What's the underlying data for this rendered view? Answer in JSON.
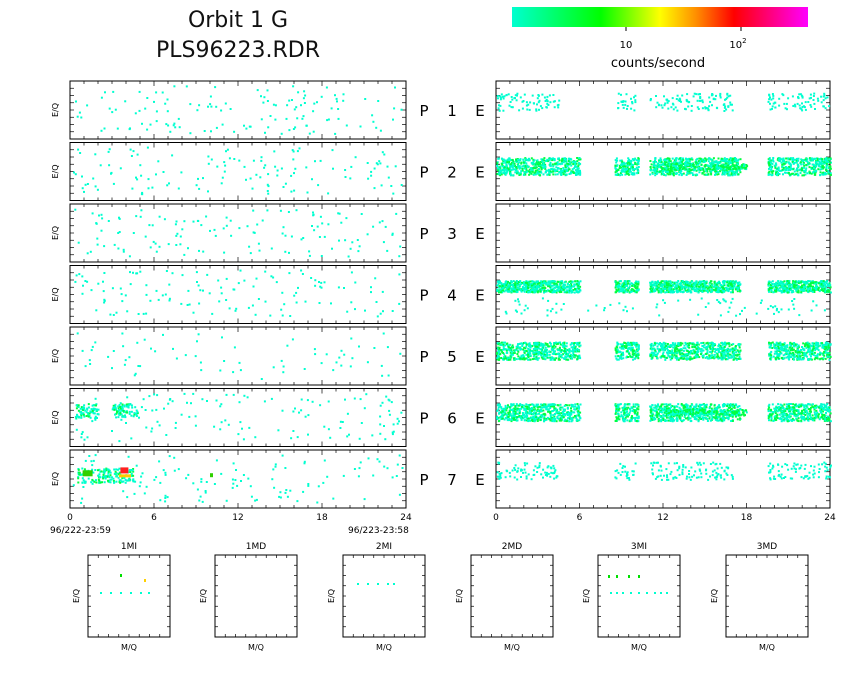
{
  "header": {
    "title_line1": "Orbit  1 G",
    "title_line2": "PLS96223.RDR"
  },
  "colorbar": {
    "label": "counts/second",
    "tick1": "10",
    "tick2_base": "10",
    "tick2_exp": "2",
    "colors": [
      "#00ffc8",
      "#00ff00",
      "#ffff00",
      "#ff8000",
      "#ff0000",
      "#ff00ff"
    ]
  },
  "chart_data": {
    "type": "heatmap",
    "ylabel": "E/Q",
    "x_ticks": [
      "0",
      "6",
      "12",
      "18",
      "24"
    ],
    "xlim": [
      0,
      24
    ],
    "time_start": "96/222-23:59",
    "time_end": "96/223-23:58",
    "panels": [
      {
        "id": "P 1",
        "left_label": "P",
        "num": "1",
        "right_label": "E",
        "left_density": "sparse",
        "right_density": "sparse-bands"
      },
      {
        "id": "P 2",
        "left_label": "P",
        "num": "2",
        "right_label": "E",
        "left_density": "sparse",
        "right_density": "dense-band"
      },
      {
        "id": "P 3",
        "left_label": "P",
        "num": "3",
        "right_label": "E",
        "left_density": "sparse",
        "right_density": "empty"
      },
      {
        "id": "P 4",
        "left_label": "P",
        "num": "4",
        "right_label": "E",
        "left_density": "sparse",
        "right_density": "dense-band"
      },
      {
        "id": "P 5",
        "left_label": "P",
        "num": "5",
        "right_label": "E",
        "left_density": "sparse",
        "right_density": "dense-band"
      },
      {
        "id": "P 6",
        "left_label": "P",
        "num": "6",
        "right_label": "E",
        "left_density": "sparse",
        "right_density": "dense-band"
      },
      {
        "id": "P 7",
        "left_label": "P",
        "num": "7",
        "right_label": "E",
        "left_density": "hot-spot",
        "right_density": "sparse-bands"
      }
    ],
    "mq_panels": [
      {
        "title": "1MI",
        "xlabel": "M/Q",
        "ylabel": "E/Q"
      },
      {
        "title": "1MD",
        "xlabel": "M/Q",
        "ylabel": "E/Q"
      },
      {
        "title": "2MI",
        "xlabel": "M/Q",
        "ylabel": "E/Q"
      },
      {
        "title": "2MD",
        "xlabel": "M/Q",
        "ylabel": "E/Q"
      },
      {
        "title": "3MI",
        "xlabel": "M/Q",
        "ylabel": "E/Q"
      },
      {
        "title": "3MD",
        "xlabel": "M/Q",
        "ylabel": "E/Q"
      }
    ]
  }
}
